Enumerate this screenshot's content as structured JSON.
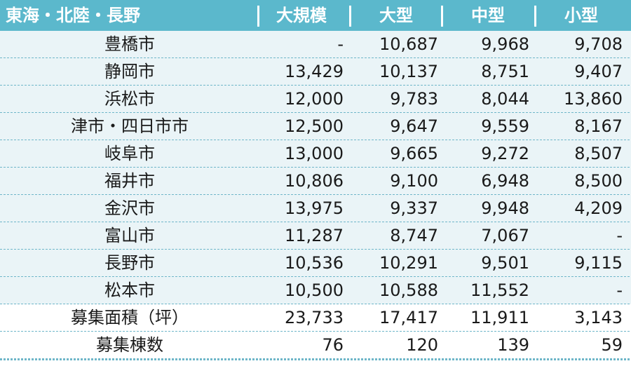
{
  "header": {
    "region": "東海・北陸・長野",
    "col1": "大規模",
    "col2": "大型",
    "col3": "中型",
    "col4": "小型"
  },
  "rows": [
    {
      "name": "豊橋市",
      "c1": "-",
      "c2": "10,687",
      "c3": "9,968",
      "c4": "9,708"
    },
    {
      "name": "静岡市",
      "c1": "13,429",
      "c2": "10,137",
      "c3": "8,751",
      "c4": "9,407"
    },
    {
      "name": "浜松市",
      "c1": "12,000",
      "c2": "9,783",
      "c3": "8,044",
      "c4": "13,860"
    },
    {
      "name": "津市・四日市市",
      "c1": "12,500",
      "c2": "9,647",
      "c3": "9,559",
      "c4": "8,167"
    },
    {
      "name": "岐阜市",
      "c1": "13,000",
      "c2": "9,665",
      "c3": "9,272",
      "c4": "8,507"
    },
    {
      "name": "福井市",
      "c1": "10,806",
      "c2": "9,100",
      "c3": "6,948",
      "c4": "8,500"
    },
    {
      "name": "金沢市",
      "c1": "13,975",
      "c2": "9,337",
      "c3": "9,948",
      "c4": "4,209"
    },
    {
      "name": "富山市",
      "c1": "11,287",
      "c2": "8,747",
      "c3": "7,067",
      "c4": "-"
    },
    {
      "name": "長野市",
      "c1": "10,536",
      "c2": "10,291",
      "c3": "9,501",
      "c4": "9,115"
    },
    {
      "name": "松本市",
      "c1": "10,500",
      "c2": "10,588",
      "c3": "11,552",
      "c4": "-"
    },
    {
      "name": "募集面積（坪）",
      "c1": "23,733",
      "c2": "17,417",
      "c3": "11,911",
      "c4": "3,143"
    },
    {
      "name": "募集棟数",
      "c1": "76",
      "c2": "120",
      "c3": "139",
      "c4": "59"
    }
  ]
}
